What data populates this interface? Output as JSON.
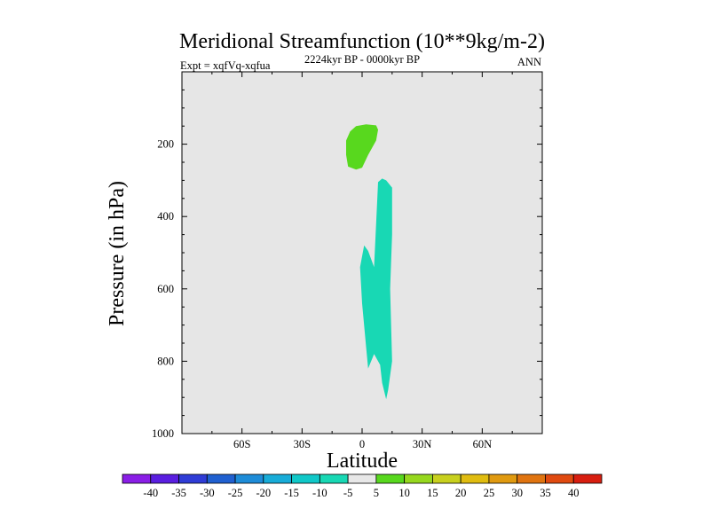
{
  "chart_data": {
    "type": "heatmap",
    "title": "Meridional Streamfunction (10**9kg/m-2)",
    "left_label": "Expt = xqfVq-xqfua",
    "center_label": "2224kyr BP - 0000kyr BP",
    "right_label": "ANN",
    "xlabel": "Latitude",
    "ylabel": "Pressure (in hPa)",
    "xlim": [
      -90,
      90
    ],
    "ylim": [
      1000,
      0
    ],
    "x_ticks": [
      {
        "value": -60,
        "label": "60S"
      },
      {
        "value": -30,
        "label": "30S"
      },
      {
        "value": 0,
        "label": "0"
      },
      {
        "value": 30,
        "label": "30N"
      },
      {
        "value": 60,
        "label": "60N"
      }
    ],
    "y_ticks": [
      {
        "value": 200,
        "label": "200"
      },
      {
        "value": 400,
        "label": "400"
      },
      {
        "value": 600,
        "label": "600"
      },
      {
        "value": 800,
        "label": "800"
      },
      {
        "value": 1000,
        "label": "1000"
      }
    ],
    "background_color": "#e6e6e6",
    "colorbar": {
      "labels": [
        "-40",
        "-35",
        "-30",
        "-25",
        "-20",
        "-15",
        "-10",
        "-5",
        "5",
        "10",
        "15",
        "20",
        "25",
        "30",
        "35",
        "40"
      ],
      "colors": [
        "#8a1ee6",
        "#5a1ee0",
        "#2f3cd6",
        "#2060d0",
        "#1e8cd8",
        "#18acd8",
        "#10c8c8",
        "#18d8b4",
        "#e8e8e8",
        "#58d81e",
        "#96d81e",
        "#c8d01e",
        "#e0bc10",
        "#e09a10",
        "#e07410",
        "#e04a10",
        "#d81e10"
      ]
    },
    "regions": [
      {
        "name": "positive-cell-upper",
        "value_range": [
          5,
          10
        ],
        "color": "#58d81e",
        "outline": [
          [
            -8,
            190
          ],
          [
            -6,
            165
          ],
          [
            -3,
            150
          ],
          [
            2,
            145
          ],
          [
            7,
            148
          ],
          [
            8,
            160
          ],
          [
            7,
            190
          ],
          [
            3,
            230
          ],
          [
            0,
            265
          ],
          [
            -3,
            270
          ],
          [
            -7,
            262
          ],
          [
            -8,
            230
          ]
        ]
      },
      {
        "name": "negative-cell-main",
        "value_range": [
          -10,
          -5
        ],
        "color": "#18d8b4",
        "outline": [
          [
            8,
            305
          ],
          [
            10,
            295
          ],
          [
            12,
            300
          ],
          [
            15,
            320
          ],
          [
            15,
            450
          ],
          [
            14,
            600
          ],
          [
            15,
            800
          ],
          [
            13,
            880
          ],
          [
            12,
            905
          ],
          [
            10,
            860
          ],
          [
            9,
            810
          ],
          [
            6,
            780
          ],
          [
            3,
            820
          ],
          [
            2,
            760
          ],
          [
            0,
            640
          ],
          [
            -1,
            540
          ],
          [
            1,
            480
          ],
          [
            3,
            495
          ],
          [
            6,
            540
          ],
          [
            7,
            420
          ]
        ]
      }
    ]
  }
}
